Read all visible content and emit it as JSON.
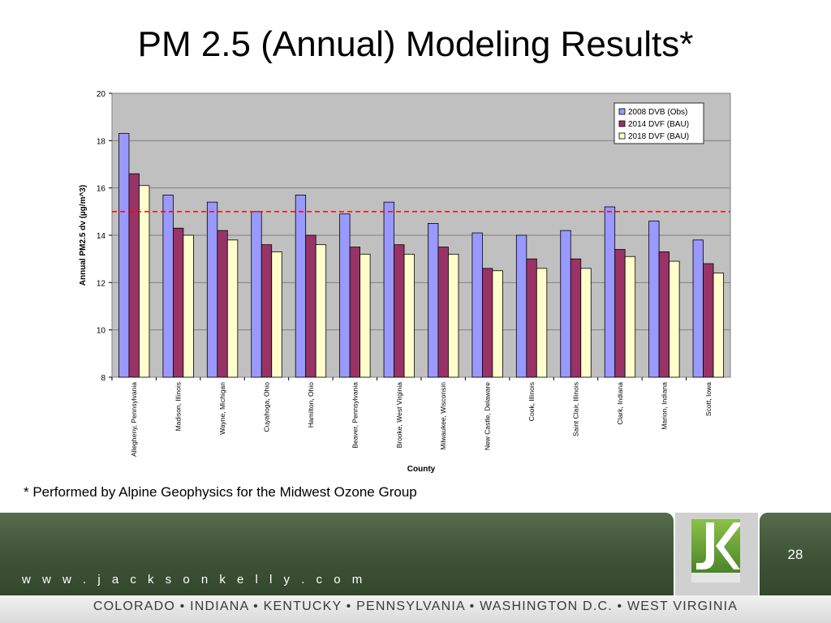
{
  "slide": {
    "title": "PM 2.5 (Annual) Modeling Results*",
    "footnote": "* Performed by Alpine Geophysics for the Midwest Ozone Group",
    "website": "w w w . j a c k s o n k e l l y . c o m",
    "page_number": "28",
    "states_line": "COLORADO • INDIANA • KENTUCKY • PENNSYLVANIA • WASHINGTON D.C. • WEST VIRGINIA",
    "logo_icon": "jk-logo-icon"
  },
  "chart_data": {
    "type": "bar",
    "categories": [
      "Allegheny, Pennsylvania",
      "Madison, Illinois",
      "Wayne, Michigan",
      "Cuyahoga, Ohio",
      "Hamilton, Ohio",
      "Beaver, Pennsylvania",
      "Brooke, West Virginia",
      "Milwaukee, Wisconsin",
      "New Castle, Delaware",
      "Cook, Illinois",
      "Saint Clair, Illinois",
      "Clark, Indiana",
      "Marion, Indiana",
      "Scott, Iowa"
    ],
    "series": [
      {
        "name": "2008 DVB (Obs)",
        "color": "#9999ff",
        "values": [
          18.3,
          15.7,
          15.4,
          15.0,
          15.7,
          14.9,
          15.4,
          14.5,
          14.1,
          14.0,
          14.2,
          15.2,
          14.6,
          13.8
        ]
      },
      {
        "name": "2014 DVF (BAU)",
        "color": "#993366",
        "values": [
          16.6,
          14.3,
          14.2,
          13.6,
          14.0,
          13.5,
          13.6,
          13.5,
          12.6,
          13.0,
          13.0,
          13.4,
          13.3,
          12.8
        ]
      },
      {
        "name": "2018 DVF (BAU)",
        "color": "#ffffcc",
        "values": [
          16.1,
          14.0,
          13.8,
          13.3,
          13.6,
          13.2,
          13.2,
          13.2,
          12.5,
          12.6,
          12.6,
          13.1,
          12.9,
          12.4
        ]
      }
    ],
    "reference_line": {
      "value": 15,
      "color": "#ff0000",
      "style": "dashed"
    },
    "xlabel": "County",
    "ylabel": "Annual PM2.5 dv (µg/m^3)",
    "ylim": [
      8,
      20
    ],
    "yticks": [
      8,
      10,
      12,
      14,
      16,
      18,
      20
    ],
    "grid": true,
    "legend": "top-right",
    "plot_background": "#c0c0c0"
  }
}
